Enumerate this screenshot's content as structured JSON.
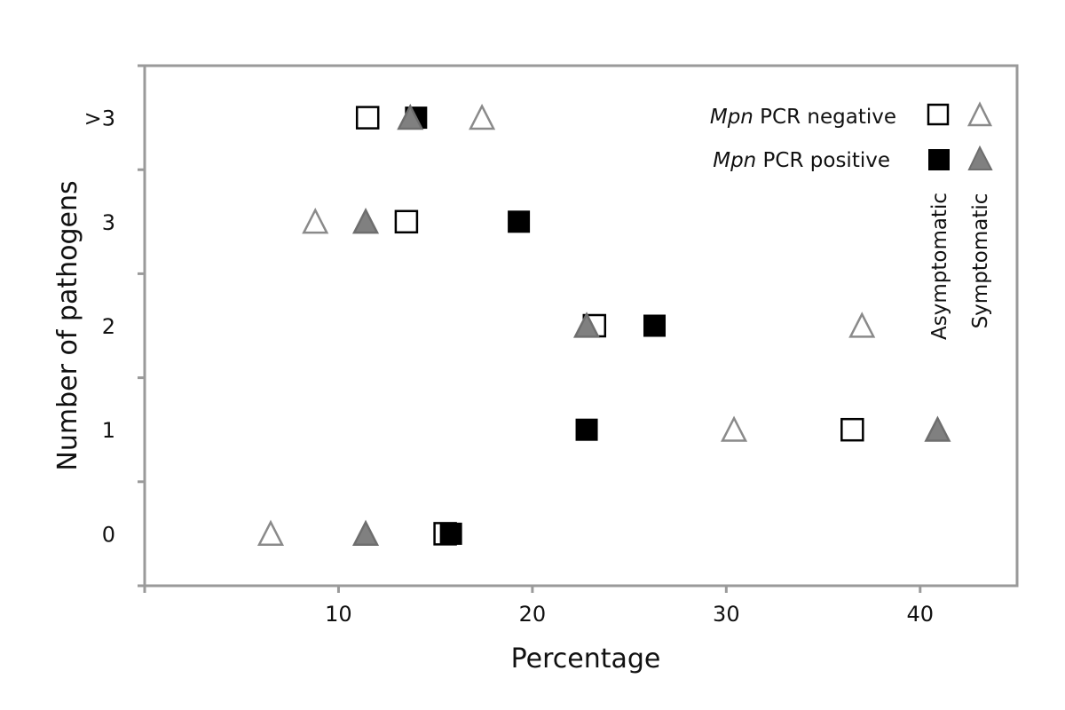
{
  "chart_data": {
    "type": "scatter",
    "xlabel": "Percentage",
    "ylabel": "Number of pathogens",
    "xlim": [
      0,
      45
    ],
    "ylim": [
      -0.5,
      4.5
    ],
    "x_ticks": [
      10,
      20,
      30,
      40
    ],
    "x_tick_labels": [
      "10",
      "20",
      "30",
      "40"
    ],
    "y_categories": [
      "0",
      "1",
      "2",
      "3",
      ">3"
    ],
    "grid": false,
    "legend_position": "top-right",
    "legend": {
      "rows": [
        {
          "prefix": "Mpn",
          "text": " PCR negative"
        },
        {
          "prefix": "Mpn",
          "text": " PCR positive"
        }
      ],
      "columns": [
        "Asymptomatic",
        "Symptomatic"
      ]
    },
    "series": [
      {
        "key": "asym_neg",
        "marker": "square",
        "fill": "#ffffff",
        "stroke": "#000000",
        "points": [
          [
            15.5,
            0
          ],
          [
            36.5,
            1
          ],
          [
            23.2,
            2
          ],
          [
            13.5,
            3
          ],
          [
            11.5,
            4
          ]
        ]
      },
      {
        "key": "asym_pos",
        "marker": "square",
        "fill": "#000000",
        "stroke": "#000000",
        "points": [
          [
            15.8,
            0
          ],
          [
            22.8,
            1
          ],
          [
            26.3,
            2
          ],
          [
            19.3,
            3
          ],
          [
            14.0,
            4
          ]
        ]
      },
      {
        "key": "sym_neg",
        "marker": "triangle",
        "fill": "#ffffff",
        "stroke": "#8a8a8a",
        "points": [
          [
            6.5,
            0
          ],
          [
            30.4,
            1
          ],
          [
            37.0,
            2
          ],
          [
            8.8,
            3
          ],
          [
            17.4,
            4
          ]
        ]
      },
      {
        "key": "sym_pos",
        "marker": "triangle",
        "fill": "#808080",
        "stroke": "#6e6e6e",
        "points": [
          [
            11.4,
            0
          ],
          [
            40.9,
            1
          ],
          [
            22.8,
            2
          ],
          [
            11.4,
            3
          ],
          [
            13.7,
            4
          ]
        ]
      }
    ]
  }
}
